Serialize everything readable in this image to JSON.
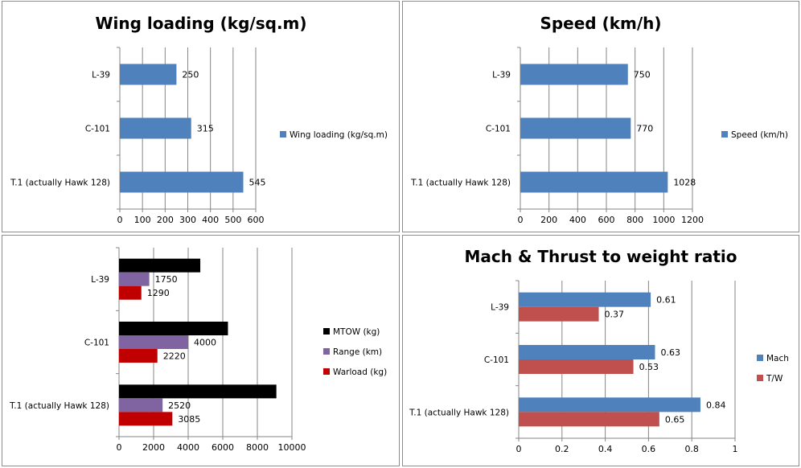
{
  "chart_data": [
    {
      "type": "bar",
      "title": "Wing loading (kg/sq.m)",
      "categories": [
        "L-39",
        "C-101",
        "T.1 (actually Hawk 128)"
      ],
      "series": [
        {
          "name": "Wing loading  (kg/sq.m)",
          "values": [
            250,
            315,
            545
          ],
          "color": "#4f81bd"
        }
      ],
      "xlim": [
        0,
        600
      ],
      "ticks": [
        0,
        100,
        200,
        300,
        400,
        500,
        600
      ],
      "legend": "right",
      "grid": true
    },
    {
      "type": "bar",
      "title": "Speed (km/h)",
      "categories": [
        "L-39",
        "C-101",
        "T.1 (actually Hawk 128)"
      ],
      "series": [
        {
          "name": "Speed (km/h)",
          "values": [
            750,
            770,
            1028
          ],
          "color": "#4f81bd"
        }
      ],
      "xlim": [
        0,
        1200
      ],
      "ticks": [
        0,
        200,
        400,
        600,
        800,
        1000,
        1200
      ],
      "legend": "right",
      "grid": true
    },
    {
      "type": "bar",
      "title": "",
      "categories": [
        "L-39",
        "C-101",
        "T.1 (actually Hawk 128)"
      ],
      "series": [
        {
          "name": "MTOW (kg)",
          "values": [
            4700,
            6300,
            9100
          ],
          "color": "#000000",
          "show_labels": false
        },
        {
          "name": "Range (km)",
          "values": [
            1750,
            4000,
            2520
          ],
          "color": "#8064a2",
          "show_labels": true
        },
        {
          "name": "Warload (kg)",
          "values": [
            1290,
            2220,
            3085
          ],
          "color": "#c00000",
          "show_labels": true
        }
      ],
      "xlim": [
        0,
        10000
      ],
      "ticks": [
        0,
        2000,
        4000,
        6000,
        8000,
        10000
      ],
      "legend": "right",
      "grid": true
    },
    {
      "type": "bar",
      "title": "Mach & Thrust to weight ratio",
      "categories": [
        "L-39",
        "C-101",
        "T.1 (actually Hawk 128)"
      ],
      "series": [
        {
          "name": "Mach",
          "values": [
            0.61,
            0.63,
            0.84
          ],
          "color": "#4f81bd",
          "show_labels": true
        },
        {
          "name": "T/W",
          "values": [
            0.37,
            0.53,
            0.65
          ],
          "color": "#c0504d",
          "show_labels": true
        }
      ],
      "xlim": [
        0,
        1
      ],
      "ticks": [
        0,
        0.2,
        0.4,
        0.6,
        0.8,
        1
      ],
      "legend": "right",
      "grid": true
    }
  ]
}
